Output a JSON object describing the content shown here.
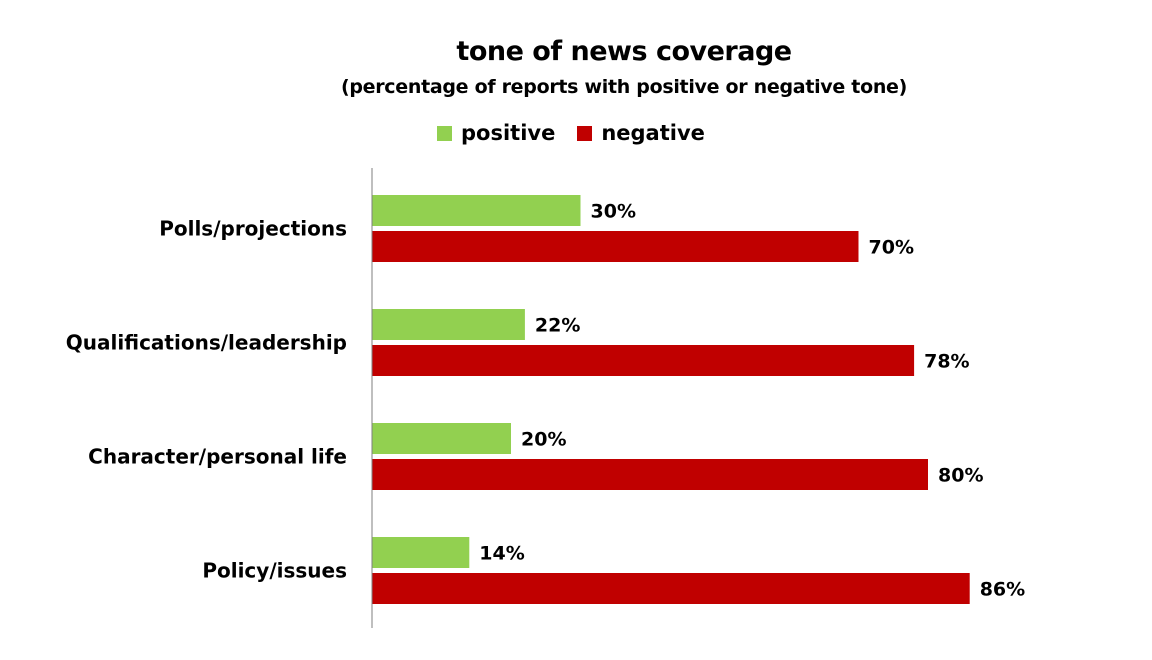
{
  "chart_data": {
    "type": "bar",
    "orientation": "horizontal",
    "title": "tone of news coverage",
    "subtitle": "(percentage of reports with positive or negative tone)",
    "categories": [
      "Polls/projections",
      "Qualifications/leadership",
      "Character/personal life",
      "Policy/issues"
    ],
    "series": [
      {
        "name": "positive",
        "color": "#92d050",
        "values": [
          30,
          22,
          20,
          14
        ],
        "labels": [
          "30%",
          "22%",
          "20%",
          "14%"
        ]
      },
      {
        "name": "negative",
        "color": "#c00000",
        "values": [
          70,
          78,
          80,
          86
        ],
        "labels": [
          "70%",
          "78%",
          "80%",
          "86%"
        ]
      }
    ],
    "xlim": [
      0,
      100
    ],
    "grid": false,
    "legend_position": "top"
  }
}
